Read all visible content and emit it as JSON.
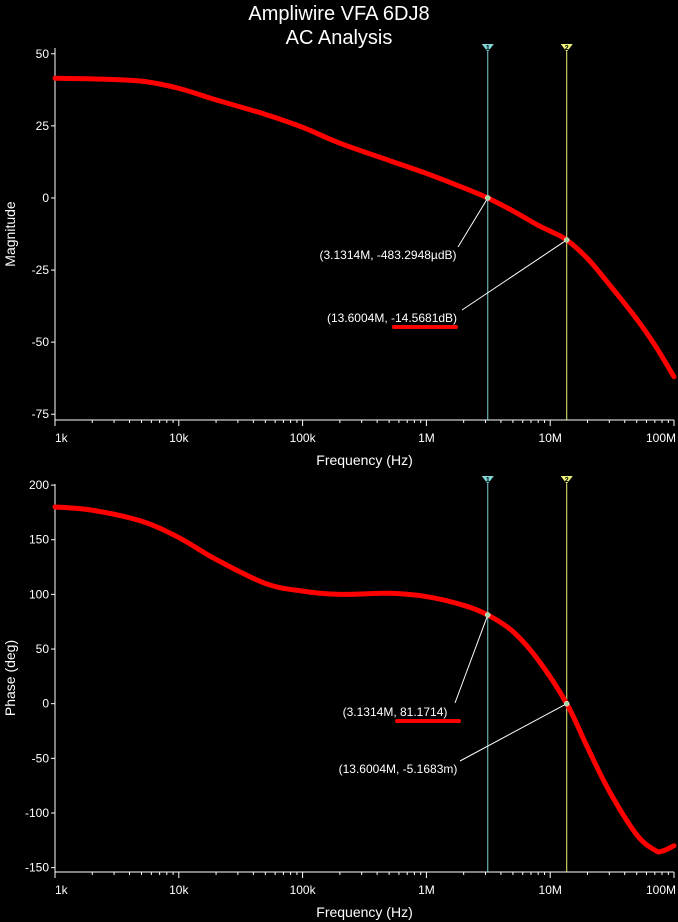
{
  "title": {
    "line1": "Ampliwire VFA 6DJ8",
    "line2": "AC Analysis"
  },
  "colors": {
    "background": "#000000",
    "curve": "#ff0000",
    "axis": "#ffffff",
    "cursor_1": "#7fd8d8",
    "cursor_2": "#f2f27a",
    "annotation_line": "#ffffff",
    "highlight": "#ff0000"
  },
  "chart_data": [
    {
      "type": "line",
      "xscale": "log",
      "xlabel": "Frequency (Hz)",
      "ylabel": "Magnitude",
      "xlim": [
        1000,
        100000000
      ],
      "ylim": [
        -77,
        52
      ],
      "x_ticks": [
        1000,
        10000,
        100000,
        1000000,
        10000000,
        100000000
      ],
      "x_tick_labels": [
        "1k",
        "10k",
        "100k",
        "1M",
        "10M",
        "100M"
      ],
      "y_ticks": [
        50,
        25,
        0,
        -25,
        -50,
        -75
      ],
      "y_tick_labels": [
        "50",
        "25",
        "0",
        "-25",
        "-50",
        "-75"
      ],
      "grid": false,
      "series": [
        {
          "x": [
            1000,
            2000,
            5000,
            10000,
            20000,
            50000,
            100000,
            200000,
            500000,
            1000000,
            2000000,
            3131400,
            5000000,
            8000000,
            10000000,
            13600400,
            20000000,
            30000000,
            50000000,
            70000000,
            100000000
          ],
          "y": [
            41.5,
            41.3,
            40.5,
            38.0,
            34.0,
            29.0,
            24.5,
            19.0,
            13.0,
            8.5,
            3.5,
            0.0,
            -4.5,
            -9.5,
            -11.5,
            -14.57,
            -21.0,
            -30.0,
            -42.0,
            -51.0,
            -62.0
          ]
        }
      ],
      "cursors": [
        {
          "label": "1",
          "x": 3131400,
          "y": 0.0
        },
        {
          "label": "2",
          "x": 13600400,
          "y": -14.5681
        }
      ],
      "annotations": [
        {
          "text": "(3.1314M, -483.2948µdB)",
          "target_cursor": "1",
          "highlight": false
        },
        {
          "text": "(13.6004M, -14.5681dB)",
          "target_cursor": "2",
          "highlight": true
        }
      ]
    },
    {
      "type": "line",
      "xscale": "log",
      "xlabel": "Frequency (Hz)",
      "ylabel": "Phase (deg)",
      "xlim": [
        1000,
        100000000
      ],
      "ylim": [
        -154,
        201
      ],
      "x_ticks": [
        1000,
        10000,
        100000,
        1000000,
        10000000,
        100000000
      ],
      "x_tick_labels": [
        "1k",
        "10k",
        "100k",
        "1M",
        "10M",
        "100M"
      ],
      "y_ticks": [
        200,
        150,
        100,
        50,
        0,
        -50,
        -100,
        -150
      ],
      "y_tick_labels": [
        "200",
        "150",
        "100",
        "50",
        "0",
        "-50",
        "-100",
        "-150"
      ],
      "grid": false,
      "series": [
        {
          "x": [
            1000,
            2000,
            5000,
            10000,
            20000,
            50000,
            100000,
            200000,
            500000,
            1000000,
            2000000,
            3131400,
            5000000,
            8000000,
            13600400,
            20000000,
            30000000,
            50000000,
            70000000,
            80000000,
            100000000
          ],
          "y": [
            180,
            177,
            167,
            152,
            132,
            110,
            103,
            100,
            101,
            98,
            90,
            81.17,
            66,
            40,
            0.0,
            -40,
            -80,
            -120,
            -134,
            -135,
            -130
          ]
        }
      ],
      "cursors": [
        {
          "label": "1",
          "x": 3131400,
          "y": 81.1714
        },
        {
          "label": "2",
          "x": 13600400,
          "y": -0.0051683
        }
      ],
      "annotations": [
        {
          "text": "(3.1314M, 81.1714)",
          "target_cursor": "1",
          "highlight": true
        },
        {
          "text": "(13.6004M, -5.1683m)",
          "target_cursor": "2",
          "highlight": false
        }
      ]
    }
  ]
}
